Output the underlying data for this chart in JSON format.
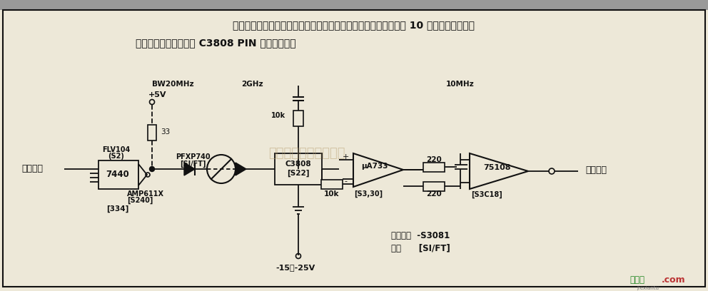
{
  "bg_color": "#ede8d8",
  "border_color": "#000000",
  "title_text1": "用于电传打字机和微处现器之间光纤数据线路，采用宽带光缆并以 10 兆位的速率传送数",
  "title_text2": "据。接收机输入端采用 C3808 PIN 光敏二极管。",
  "watermark": "杭州洛客科技有限公司",
  "watermark_color": "#b8a070",
  "footer_text1": "接线图",
  "footer_text2": ".com",
  "footer_color1": "#228822",
  "footer_color2": "#bb3333",
  "footer_sub": "jrexiantu",
  "circuit_color": "#111111",
  "label_BW": "BW20MHz",
  "label_2G": "2GHz",
  "label_10M": "10MHz",
  "label_5V": "+5V",
  "label_33": "33",
  "label_PFXP": "PFXP740",
  "label_SIFT1": "[SI/FT]",
  "label_10k1": "10k",
  "label_C3808": "C3808",
  "label_S22": "[S22]",
  "label_10k2": "10k",
  "label_uA733": "μA733",
  "label_S330": "[S3,30]",
  "label_220a": "220",
  "label_220b": "220",
  "label_75108": "75108",
  "label_S308": "[S3C18]",
  "label_out": "数字输出",
  "label_FLV": "FLV104",
  "label_S2": "(S2)",
  "label_AMP": "AMP611X",
  "label_S240": "[S240]",
  "label_7440": "7440",
  "label_334": "[334]",
  "label_in": "数字输入",
  "label_neg": "-15～-25V",
  "label_S3081": "电子元件  -S3081",
  "label_cable": "电缆      [SI/FT]"
}
